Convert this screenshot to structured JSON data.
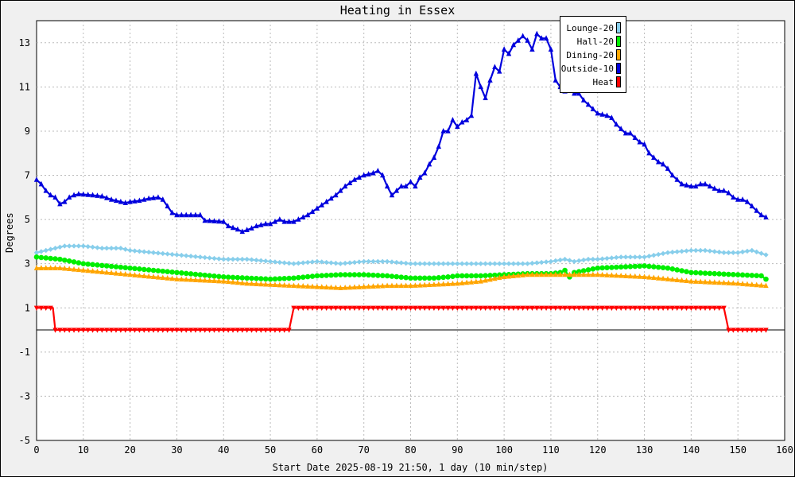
{
  "chart_data": {
    "type": "line",
    "title": "Heating in Essex",
    "xlabel": "Start Date 2025-08-19 21:50, 1 day (10 min/step)",
    "ylabel": "Degrees",
    "xlim": [
      0,
      160
    ],
    "ylim": [
      -5,
      14
    ],
    "xticks": [
      0,
      10,
      20,
      30,
      40,
      50,
      60,
      70,
      80,
      90,
      100,
      110,
      120,
      130,
      140,
      150,
      160
    ],
    "yticks": [
      -5,
      -3,
      -1,
      1,
      3,
      5,
      7,
      9,
      11,
      13
    ],
    "grid": true,
    "legend_position": "top-right",
    "series": [
      {
        "name": "Lounge-20",
        "color": "#87ceeb",
        "marker": "diamond",
        "points": [
          [
            0,
            3.5
          ],
          [
            4,
            3.7
          ],
          [
            6,
            3.8
          ],
          [
            10,
            3.8
          ],
          [
            14,
            3.7
          ],
          [
            18,
            3.7
          ],
          [
            20,
            3.6
          ],
          [
            25,
            3.5
          ],
          [
            30,
            3.4
          ],
          [
            35,
            3.3
          ],
          [
            40,
            3.2
          ],
          [
            45,
            3.2
          ],
          [
            50,
            3.1
          ],
          [
            55,
            3.0
          ],
          [
            60,
            3.1
          ],
          [
            65,
            3.0
          ],
          [
            70,
            3.1
          ],
          [
            75,
            3.1
          ],
          [
            80,
            3.0
          ],
          [
            85,
            3.0
          ],
          [
            90,
            3.0
          ],
          [
            95,
            3.0
          ],
          [
            100,
            3.0
          ],
          [
            105,
            3.0
          ],
          [
            110,
            3.1
          ],
          [
            113,
            3.2
          ],
          [
            115,
            3.1
          ],
          [
            118,
            3.2
          ],
          [
            120,
            3.2
          ],
          [
            125,
            3.3
          ],
          [
            130,
            3.3
          ],
          [
            135,
            3.5
          ],
          [
            140,
            3.6
          ],
          [
            143,
            3.6
          ],
          [
            147,
            3.5
          ],
          [
            150,
            3.5
          ],
          [
            153,
            3.6
          ],
          [
            156,
            3.4
          ]
        ]
      },
      {
        "name": "Hall-20",
        "color": "#00ee00",
        "marker": "circle",
        "points": [
          [
            0,
            3.3
          ],
          [
            5,
            3.2
          ],
          [
            10,
            3.0
          ],
          [
            15,
            2.9
          ],
          [
            20,
            2.8
          ],
          [
            25,
            2.7
          ],
          [
            30,
            2.6
          ],
          [
            35,
            2.5
          ],
          [
            40,
            2.4
          ],
          [
            45,
            2.35
          ],
          [
            50,
            2.3
          ],
          [
            55,
            2.35
          ],
          [
            60,
            2.45
          ],
          [
            65,
            2.5
          ],
          [
            70,
            2.5
          ],
          [
            75,
            2.45
          ],
          [
            80,
            2.35
          ],
          [
            85,
            2.35
          ],
          [
            88,
            2.4
          ],
          [
            90,
            2.45
          ],
          [
            95,
            2.45
          ],
          [
            100,
            2.5
          ],
          [
            105,
            2.55
          ],
          [
            110,
            2.55
          ],
          [
            112,
            2.6
          ],
          [
            113,
            2.7
          ],
          [
            114,
            2.4
          ],
          [
            115,
            2.6
          ],
          [
            120,
            2.8
          ],
          [
            125,
            2.85
          ],
          [
            130,
            2.9
          ],
          [
            135,
            2.8
          ],
          [
            140,
            2.6
          ],
          [
            145,
            2.55
          ],
          [
            150,
            2.5
          ],
          [
            155,
            2.45
          ],
          [
            156,
            2.3
          ]
        ]
      },
      {
        "name": "Dining-20",
        "color": "#ffa500",
        "marker": "triangle",
        "points": [
          [
            0,
            2.8
          ],
          [
            5,
            2.8
          ],
          [
            10,
            2.7
          ],
          [
            15,
            2.6
          ],
          [
            20,
            2.5
          ],
          [
            25,
            2.4
          ],
          [
            30,
            2.3
          ],
          [
            35,
            2.25
          ],
          [
            40,
            2.2
          ],
          [
            45,
            2.1
          ],
          [
            50,
            2.05
          ],
          [
            55,
            2.0
          ],
          [
            60,
            1.95
          ],
          [
            65,
            1.9
          ],
          [
            70,
            1.95
          ],
          [
            75,
            2.0
          ],
          [
            80,
            2.0
          ],
          [
            85,
            2.05
          ],
          [
            90,
            2.1
          ],
          [
            95,
            2.2
          ],
          [
            100,
            2.4
          ],
          [
            105,
            2.5
          ],
          [
            110,
            2.5
          ],
          [
            115,
            2.5
          ],
          [
            120,
            2.5
          ],
          [
            125,
            2.45
          ],
          [
            130,
            2.4
          ],
          [
            135,
            2.3
          ],
          [
            140,
            2.2
          ],
          [
            145,
            2.15
          ],
          [
            150,
            2.1
          ],
          [
            156,
            2.0
          ]
        ]
      },
      {
        "name": "Outside-10",
        "color": "#0000dd",
        "marker": "triangle",
        "points": [
          [
            0,
            6.8
          ],
          [
            1,
            6.6
          ],
          [
            2,
            6.3
          ],
          [
            3,
            6.1
          ],
          [
            4,
            6.0
          ],
          [
            5,
            5.7
          ],
          [
            6,
            5.8
          ],
          [
            7,
            6.0
          ],
          [
            8,
            6.1
          ],
          [
            9,
            6.15
          ],
          [
            12,
            6.1
          ],
          [
            14,
            6.05
          ],
          [
            16,
            5.9
          ],
          [
            18,
            5.8
          ],
          [
            19,
            5.75
          ],
          [
            20,
            5.8
          ],
          [
            22,
            5.85
          ],
          [
            24,
            5.95
          ],
          [
            26,
            6.0
          ],
          [
            27,
            5.9
          ],
          [
            28,
            5.6
          ],
          [
            29,
            5.3
          ],
          [
            30,
            5.2
          ],
          [
            35,
            5.2
          ],
          [
            36,
            4.95
          ],
          [
            40,
            4.9
          ],
          [
            41,
            4.7
          ],
          [
            43,
            4.55
          ],
          [
            44,
            4.45
          ],
          [
            46,
            4.6
          ],
          [
            47,
            4.7
          ],
          [
            48,
            4.75
          ],
          [
            49,
            4.8
          ],
          [
            50,
            4.8
          ],
          [
            51,
            4.9
          ],
          [
            52,
            5.0
          ],
          [
            53,
            4.9
          ],
          [
            55,
            4.9
          ],
          [
            56,
            5.0
          ],
          [
            58,
            5.2
          ],
          [
            60,
            5.5
          ],
          [
            62,
            5.8
          ],
          [
            64,
            6.1
          ],
          [
            66,
            6.5
          ],
          [
            68,
            6.8
          ],
          [
            70,
            7.0
          ],
          [
            72,
            7.1
          ],
          [
            73,
            7.2
          ],
          [
            74,
            7.0
          ],
          [
            75,
            6.5
          ],
          [
            76,
            6.1
          ],
          [
            77,
            6.3
          ],
          [
            78,
            6.5
          ],
          [
            79,
            6.5
          ],
          [
            80,
            6.7
          ],
          [
            81,
            6.5
          ],
          [
            82,
            6.9
          ],
          [
            83,
            7.1
          ],
          [
            84,
            7.5
          ],
          [
            85,
            7.8
          ],
          [
            86,
            8.3
          ],
          [
            87,
            9.0
          ],
          [
            88,
            9.0
          ],
          [
            89,
            9.5
          ],
          [
            90,
            9.2
          ],
          [
            91,
            9.4
          ],
          [
            92,
            9.5
          ],
          [
            93,
            9.7
          ],
          [
            94,
            11.6
          ],
          [
            95,
            11.0
          ],
          [
            96,
            10.5
          ],
          [
            97,
            11.3
          ],
          [
            98,
            11.9
          ],
          [
            99,
            11.7
          ],
          [
            100,
            12.7
          ],
          [
            101,
            12.5
          ],
          [
            102,
            12.9
          ],
          [
            103,
            13.1
          ],
          [
            104,
            13.3
          ],
          [
            105,
            13.1
          ],
          [
            106,
            12.7
          ],
          [
            107,
            13.4
          ],
          [
            108,
            13.2
          ],
          [
            109,
            13.2
          ],
          [
            110,
            12.7
          ],
          [
            111,
            11.3
          ],
          [
            112,
            11.0
          ],
          [
            113,
            10.8
          ],
          [
            114,
            10.9
          ],
          [
            115,
            10.7
          ],
          [
            116,
            10.7
          ],
          [
            117,
            10.4
          ],
          [
            118,
            10.2
          ],
          [
            119,
            10.0
          ],
          [
            120,
            9.8
          ],
          [
            122,
            9.7
          ],
          [
            123,
            9.6
          ],
          [
            124,
            9.3
          ],
          [
            125,
            9.1
          ],
          [
            126,
            8.9
          ],
          [
            127,
            8.9
          ],
          [
            128,
            8.7
          ],
          [
            129,
            8.5
          ],
          [
            130,
            8.4
          ],
          [
            131,
            8.0
          ],
          [
            132,
            7.8
          ],
          [
            133,
            7.6
          ],
          [
            134,
            7.5
          ],
          [
            135,
            7.3
          ],
          [
            136,
            7.0
          ],
          [
            137,
            6.8
          ],
          [
            138,
            6.6
          ],
          [
            140,
            6.5
          ],
          [
            141,
            6.5
          ],
          [
            142,
            6.6
          ],
          [
            143,
            6.6
          ],
          [
            144,
            6.5
          ],
          [
            145,
            6.4
          ],
          [
            146,
            6.3
          ],
          [
            147,
            6.3
          ],
          [
            148,
            6.2
          ],
          [
            149,
            6.0
          ],
          [
            150,
            5.9
          ],
          [
            151,
            5.9
          ],
          [
            152,
            5.8
          ],
          [
            153,
            5.6
          ],
          [
            154,
            5.4
          ],
          [
            155,
            5.2
          ],
          [
            156,
            5.1
          ]
        ]
      },
      {
        "name": "Heat",
        "color": "#ff0000",
        "marker": "triangle-down",
        "points": [
          [
            0,
            1
          ],
          [
            3.5,
            1
          ],
          [
            4,
            0
          ],
          [
            54,
            0
          ],
          [
            55,
            1
          ],
          [
            147,
            1
          ],
          [
            148,
            0
          ],
          [
            156,
            0
          ]
        ]
      }
    ]
  }
}
